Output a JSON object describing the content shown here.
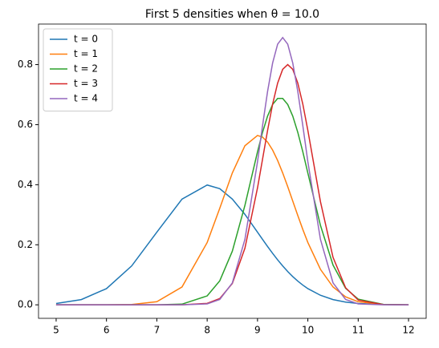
{
  "chart_data": {
    "type": "line",
    "title": "First 5 densities when θ = 10.0",
    "x": [
      5,
      5.5,
      6,
      6.5,
      7,
      7.5,
      8,
      8.25,
      8.5,
      8.75,
      9,
      9.1,
      9.2,
      9.3,
      9.4,
      9.5,
      9.6,
      9.7,
      9.8,
      9.9,
      10,
      10.25,
      10.5,
      10.75,
      11,
      11.5,
      12
    ],
    "series": [
      {
        "name": "t = 0",
        "color": "#1f77b4",
        "values": [
          0.0044,
          0.0175,
          0.054,
          0.1295,
          0.242,
          0.352,
          0.399,
          0.3867,
          0.352,
          0.3012,
          0.242,
          0.2179,
          0.1942,
          0.1714,
          0.1497,
          0.1295,
          0.1109,
          0.094,
          0.079,
          0.0656,
          0.054,
          0.0318,
          0.0175,
          0.0091,
          0.0044,
          0.0009,
          0.0001
        ]
      },
      {
        "name": "t = 1",
        "color": "#ff7f0e",
        "values": [
          0,
          0,
          0.0001,
          0.0011,
          0.0103,
          0.0594,
          0.2075,
          0.3214,
          0.4392,
          0.5298,
          0.564,
          0.5584,
          0.5419,
          0.5154,
          0.4806,
          0.4392,
          0.3935,
          0.3455,
          0.2974,
          0.2509,
          0.2075,
          0.1182,
          0.0594,
          0.0264,
          0.0103,
          0.0011,
          0.0001
        ]
      },
      {
        "name": "t = 2",
        "color": "#2ca02c",
        "values": [
          0,
          0,
          0,
          0,
          0.0001,
          0.0023,
          0.0297,
          0.0799,
          0.1787,
          0.3313,
          0.5096,
          0.5744,
          0.6284,
          0.6671,
          0.6874,
          0.6874,
          0.6671,
          0.6284,
          0.5744,
          0.5096,
          0.4387,
          0.2647,
          0.1325,
          0.055,
          0.0189,
          0.0013,
          0
        ]
      },
      {
        "name": "t = 3",
        "color": "#d62728",
        "values": [
          0,
          0,
          0,
          0,
          0,
          0.0001,
          0.0048,
          0.0209,
          0.0711,
          0.1886,
          0.3894,
          0.4852,
          0.5809,
          0.6682,
          0.7385,
          0.7842,
          0.8,
          0.7842,
          0.7385,
          0.6682,
          0.5809,
          0.3437,
          0.1583,
          0.0568,
          0.0159,
          0.0006,
          0
        ]
      },
      {
        "name": "t = 4",
        "color": "#9467bd",
        "values": [
          0,
          0,
          0,
          0,
          0,
          0,
          0.0032,
          0.0179,
          0.0731,
          0.218,
          0.4764,
          0.5966,
          0.7107,
          0.8053,
          0.868,
          0.89,
          0.868,
          0.8053,
          0.7107,
          0.5966,
          0.4764,
          0.218,
          0.0731,
          0.0179,
          0.0032,
          0,
          0
        ]
      }
    ],
    "xlim": [
      4.65,
      12.35
    ],
    "xticks": [
      5,
      6,
      7,
      8,
      9,
      10,
      11,
      12
    ],
    "ylim": [
      -0.045,
      0.935
    ],
    "yticks": [
      {
        "value": 0,
        "label": "0.0"
      },
      {
        "value": 0.2,
        "label": "0.2"
      },
      {
        "value": 0.4,
        "label": "0.4"
      },
      {
        "value": 0.6,
        "label": "0.6"
      },
      {
        "value": 0.8,
        "label": "0.8"
      }
    ],
    "legend": "upper left",
    "grid": false
  }
}
